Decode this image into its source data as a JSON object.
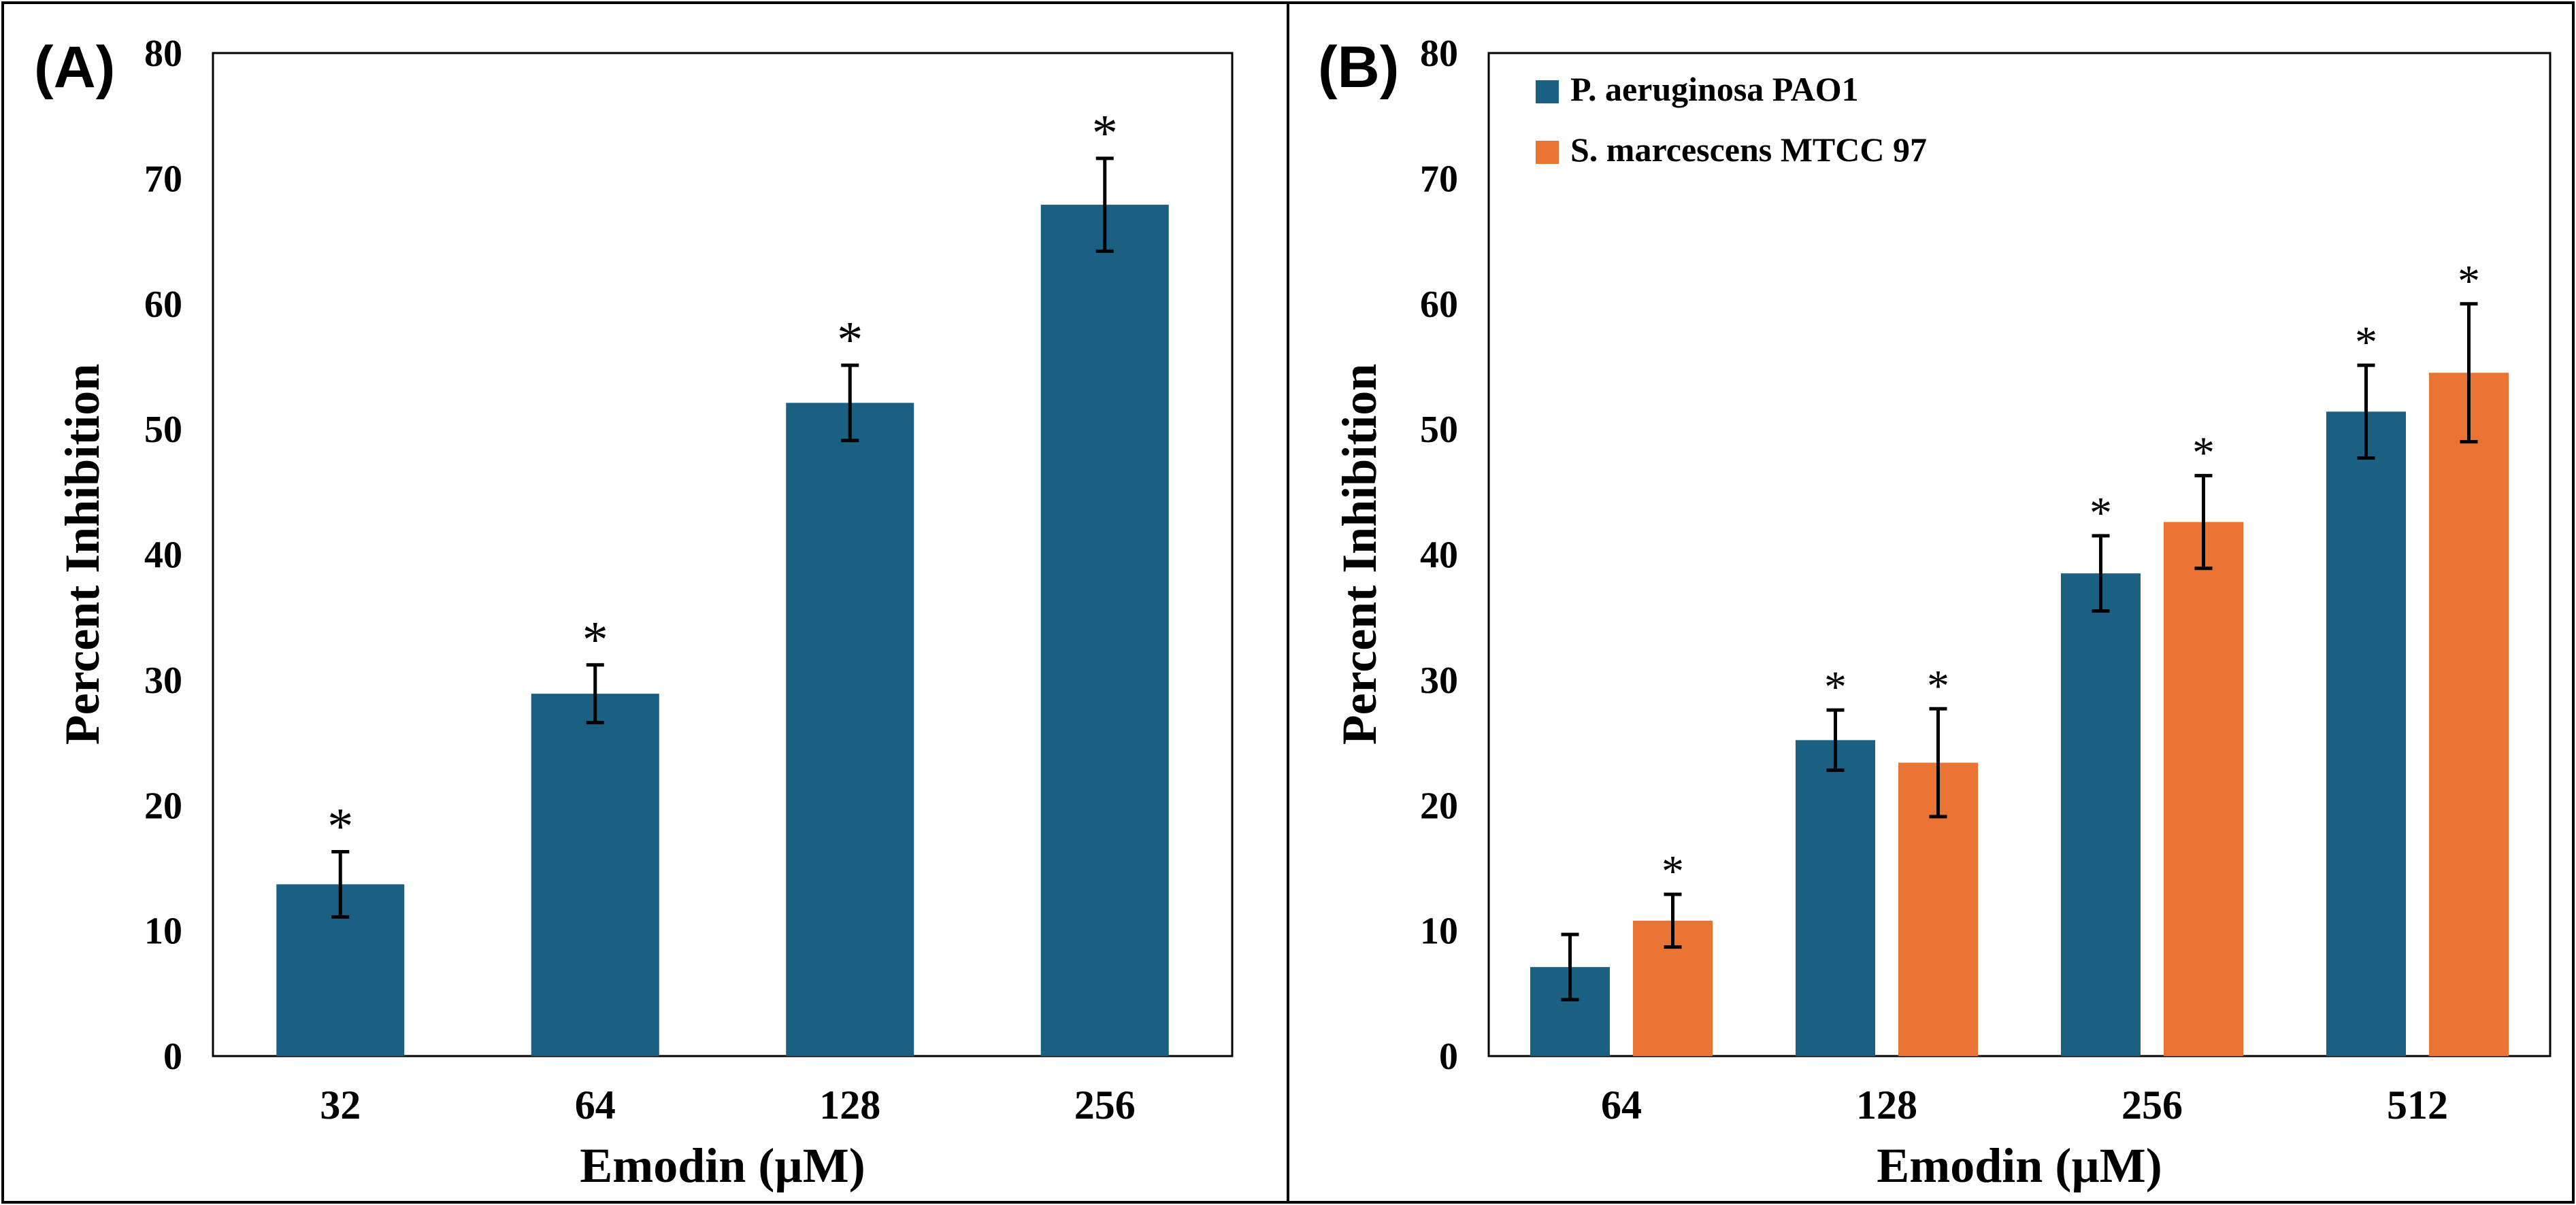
{
  "colors": {
    "series1": "#1a6082",
    "series2": "#e97434",
    "axis": "#000000",
    "errorbar": "#000000"
  },
  "chart_data": [
    {
      "type": "bar",
      "panel_label": "(A)",
      "title": "",
      "xlabel": "Emodin (µM)",
      "ylabel": "Percent Inhibition",
      "ylim": [
        0,
        80
      ],
      "yticks": [
        "0",
        "10",
        "20",
        "30",
        "40",
        "50",
        "60",
        "70",
        "80"
      ],
      "categories": [
        "32",
        "64",
        "128",
        "256"
      ],
      "legend": "none",
      "series": [
        {
          "name": "",
          "values": [
            13.7,
            28.9,
            52.1,
            67.9
          ],
          "errors": [
            2.6,
            2.3,
            3.0,
            3.7
          ],
          "significance": [
            "*",
            "*",
            "*",
            "*"
          ]
        }
      ]
    },
    {
      "type": "bar",
      "panel_label": "(B)",
      "title": "",
      "xlabel": "Emodin (µM)",
      "ylabel": "Percent Inhibition",
      "ylim": [
        0,
        80
      ],
      "yticks": [
        "0",
        "10",
        "20",
        "30",
        "40",
        "50",
        "60",
        "70",
        "80"
      ],
      "categories": [
        "64",
        "128",
        "256",
        "512"
      ],
      "legend": "top-left",
      "series": [
        {
          "name": "P. aeruginosa PAO1",
          "values": [
            7.1,
            25.2,
            38.5,
            51.4
          ],
          "errors": [
            2.6,
            2.4,
            3.0,
            3.7
          ],
          "significance": [
            "",
            "*",
            "*",
            "*"
          ]
        },
        {
          "name": "S. marcescens MTCC 97",
          "values": [
            10.8,
            23.4,
            42.6,
            54.5
          ],
          "errors": [
            2.1,
            4.3,
            3.7,
            5.5
          ],
          "significance": [
            "*",
            "*",
            "*",
            "*"
          ]
        }
      ]
    }
  ]
}
